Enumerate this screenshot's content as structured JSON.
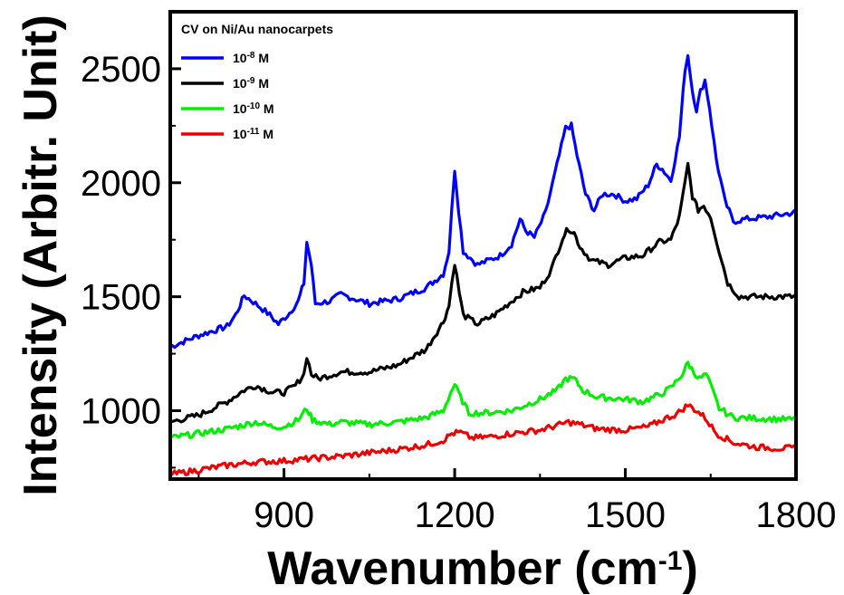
{
  "chart_data": {
    "type": "line",
    "title": "CV on Ni/Au nanocarpets",
    "xlabel_main": "Wavenumber (cm",
    "xlabel_sup": "-1",
    "xlabel_close": ")",
    "ylabel": "Intensity (Arbitr. Unit)",
    "xlim": [
      700,
      1800
    ],
    "ylim": [
      700,
      2750
    ],
    "x_ticks": [
      900,
      1200,
      1500,
      1800
    ],
    "x_tick_labels": [
      "900",
      "1200",
      "1500",
      "1800"
    ],
    "y_ticks": [
      1000,
      1500,
      2000,
      2500
    ],
    "y_tick_labels": [
      "1000",
      "1500",
      "2000",
      "2500"
    ],
    "legend_position": "top-left",
    "series": [
      {
        "base": "10",
        "exp": "-8",
        "unit": "M",
        "color": "#0000ff",
        "points": [
          [
            700,
            1280
          ],
          [
            750,
            1330
          ],
          [
            800,
            1370
          ],
          [
            815,
            1420
          ],
          [
            830,
            1505
          ],
          [
            850,
            1470
          ],
          [
            875,
            1420
          ],
          [
            890,
            1380
          ],
          [
            910,
            1430
          ],
          [
            925,
            1480
          ],
          [
            935,
            1560
          ],
          [
            940,
            1740
          ],
          [
            948,
            1640
          ],
          [
            955,
            1470
          ],
          [
            980,
            1480
          ],
          [
            1000,
            1510
          ],
          [
            1050,
            1470
          ],
          [
            1100,
            1490
          ],
          [
            1150,
            1540
          ],
          [
            1180,
            1600
          ],
          [
            1190,
            1700
          ],
          [
            1195,
            1880
          ],
          [
            1200,
            2060
          ],
          [
            1207,
            1880
          ],
          [
            1215,
            1700
          ],
          [
            1240,
            1640
          ],
          [
            1280,
            1680
          ],
          [
            1300,
            1730
          ],
          [
            1315,
            1840
          ],
          [
            1325,
            1790
          ],
          [
            1340,
            1760
          ],
          [
            1360,
            1870
          ],
          [
            1380,
            2080
          ],
          [
            1395,
            2240
          ],
          [
            1405,
            2250
          ],
          [
            1415,
            2120
          ],
          [
            1430,
            1950
          ],
          [
            1445,
            1880
          ],
          [
            1460,
            1950
          ],
          [
            1480,
            1950
          ],
          [
            1500,
            1920
          ],
          [
            1520,
            1930
          ],
          [
            1540,
            1990
          ],
          [
            1555,
            2080
          ],
          [
            1565,
            2060
          ],
          [
            1580,
            2010
          ],
          [
            1595,
            2200
          ],
          [
            1605,
            2500
          ],
          [
            1610,
            2560
          ],
          [
            1618,
            2400
          ],
          [
            1625,
            2320
          ],
          [
            1632,
            2400
          ],
          [
            1640,
            2450
          ],
          [
            1648,
            2330
          ],
          [
            1660,
            2100
          ],
          [
            1675,
            1920
          ],
          [
            1690,
            1830
          ],
          [
            1710,
            1840
          ],
          [
            1750,
            1850
          ],
          [
            1800,
            1870
          ]
        ]
      },
      {
        "base": "10",
        "exp": "-9",
        "unit": "M",
        "color": "#000000",
        "points": [
          [
            700,
            950
          ],
          [
            750,
            980
          ],
          [
            800,
            1040
          ],
          [
            830,
            1090
          ],
          [
            850,
            1110
          ],
          [
            880,
            1080
          ],
          [
            900,
            1080
          ],
          [
            920,
            1110
          ],
          [
            935,
            1160
          ],
          [
            940,
            1240
          ],
          [
            948,
            1160
          ],
          [
            960,
            1140
          ],
          [
            1000,
            1170
          ],
          [
            1050,
            1170
          ],
          [
            1100,
            1200
          ],
          [
            1150,
            1270
          ],
          [
            1180,
            1390
          ],
          [
            1190,
            1460
          ],
          [
            1195,
            1560
          ],
          [
            1200,
            1650
          ],
          [
            1208,
            1520
          ],
          [
            1215,
            1420
          ],
          [
            1240,
            1380
          ],
          [
            1270,
            1420
          ],
          [
            1300,
            1480
          ],
          [
            1320,
            1520
          ],
          [
            1350,
            1540
          ],
          [
            1370,
            1620
          ],
          [
            1390,
            1760
          ],
          [
            1400,
            1800
          ],
          [
            1410,
            1780
          ],
          [
            1420,
            1720
          ],
          [
            1440,
            1660
          ],
          [
            1470,
            1640
          ],
          [
            1500,
            1670
          ],
          [
            1530,
            1680
          ],
          [
            1560,
            1740
          ],
          [
            1580,
            1750
          ],
          [
            1595,
            1850
          ],
          [
            1605,
            2000
          ],
          [
            1610,
            2080
          ],
          [
            1618,
            1940
          ],
          [
            1628,
            1880
          ],
          [
            1638,
            1900
          ],
          [
            1650,
            1850
          ],
          [
            1665,
            1700
          ],
          [
            1680,
            1560
          ],
          [
            1700,
            1500
          ],
          [
            1750,
            1500
          ],
          [
            1800,
            1500
          ]
        ]
      },
      {
        "base": "10",
        "exp": "-10",
        "unit": "M",
        "color": "#00ee00",
        "points": [
          [
            700,
            880
          ],
          [
            750,
            900
          ],
          [
            800,
            920
          ],
          [
            850,
            950
          ],
          [
            880,
            930
          ],
          [
            900,
            930
          ],
          [
            925,
            960
          ],
          [
            940,
            1010
          ],
          [
            950,
            960
          ],
          [
            980,
            940
          ],
          [
            1000,
            950
          ],
          [
            1050,
            940
          ],
          [
            1100,
            950
          ],
          [
            1150,
            970
          ],
          [
            1180,
            1000
          ],
          [
            1193,
            1080
          ],
          [
            1200,
            1115
          ],
          [
            1210,
            1060
          ],
          [
            1225,
            990
          ],
          [
            1250,
            990
          ],
          [
            1300,
            1000
          ],
          [
            1350,
            1050
          ],
          [
            1380,
            1090
          ],
          [
            1395,
            1140
          ],
          [
            1410,
            1140
          ],
          [
            1425,
            1090
          ],
          [
            1450,
            1060
          ],
          [
            1500,
            1050
          ],
          [
            1530,
            1040
          ],
          [
            1560,
            1070
          ],
          [
            1580,
            1100
          ],
          [
            1600,
            1160
          ],
          [
            1610,
            1210
          ],
          [
            1620,
            1170
          ],
          [
            1630,
            1140
          ],
          [
            1642,
            1160
          ],
          [
            1650,
            1110
          ],
          [
            1665,
            1010
          ],
          [
            1690,
            970
          ],
          [
            1750,
            965
          ],
          [
            1800,
            960
          ]
        ]
      },
      {
        "base": "10",
        "exp": "-11",
        "unit": "M",
        "color": "#ee0000",
        "points": [
          [
            700,
            720
          ],
          [
            750,
            740
          ],
          [
            800,
            760
          ],
          [
            850,
            775
          ],
          [
            900,
            780
          ],
          [
            950,
            790
          ],
          [
            1000,
            800
          ],
          [
            1050,
            815
          ],
          [
            1100,
            830
          ],
          [
            1150,
            850
          ],
          [
            1180,
            870
          ],
          [
            1195,
            900
          ],
          [
            1210,
            905
          ],
          [
            1230,
            880
          ],
          [
            1260,
            885
          ],
          [
            1300,
            900
          ],
          [
            1350,
            915
          ],
          [
            1380,
            935
          ],
          [
            1400,
            950
          ],
          [
            1420,
            940
          ],
          [
            1450,
            920
          ],
          [
            1500,
            915
          ],
          [
            1540,
            930
          ],
          [
            1570,
            965
          ],
          [
            1590,
            985
          ],
          [
            1610,
            1025
          ],
          [
            1625,
            1000
          ],
          [
            1640,
            970
          ],
          [
            1660,
            900
          ],
          [
            1690,
            860
          ],
          [
            1730,
            840
          ],
          [
            1770,
            835
          ],
          [
            1800,
            835
          ]
        ]
      }
    ]
  }
}
